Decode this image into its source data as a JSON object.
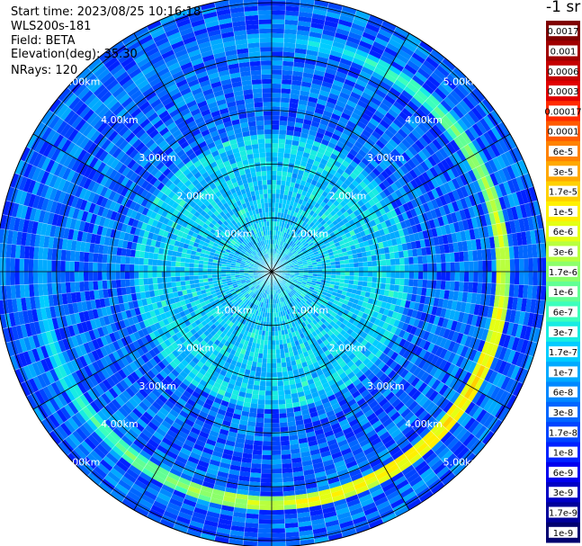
{
  "header": {
    "start_time": "Start time: 2023/08/25 10:16:18",
    "instrument": "WLS200s-181",
    "field": "Field: BETA",
    "elevation": "Elevation(deg): 35.30",
    "nrays": "NRays: 120"
  },
  "colorbar": {
    "title": "-1 sr",
    "entries": [
      {
        "label": "0.0017",
        "color": "#7f0000"
      },
      {
        "label": "0.001",
        "color": "#a00000"
      },
      {
        "label": "0.0006",
        "color": "#c40000"
      },
      {
        "label": "0.0003",
        "color": "#e00000"
      },
      {
        "label": "0.00017",
        "color": "#ff2a00"
      },
      {
        "label": "0.0001",
        "color": "#ff5a00"
      },
      {
        "label": "6e-5",
        "color": "#ff8200"
      },
      {
        "label": "3e-5",
        "color": "#ffa800"
      },
      {
        "label": "1.7e-5",
        "color": "#ffd000"
      },
      {
        "label": "1e-5",
        "color": "#fff000"
      },
      {
        "label": "6e-6",
        "color": "#e4ff14"
      },
      {
        "label": "3e-6",
        "color": "#b8ff3e"
      },
      {
        "label": "1.7e-6",
        "color": "#8cff6a"
      },
      {
        "label": "1e-6",
        "color": "#62ff94"
      },
      {
        "label": "6e-7",
        "color": "#3cffbc"
      },
      {
        "label": "3e-7",
        "color": "#18ece2"
      },
      {
        "label": "1.7e-7",
        "color": "#00ccff"
      },
      {
        "label": "1e-7",
        "color": "#00aaff"
      },
      {
        "label": "6e-8",
        "color": "#0088ff"
      },
      {
        "label": "3e-8",
        "color": "#0066ff"
      },
      {
        "label": "1.7e-8",
        "color": "#0044ff"
      },
      {
        "label": "1e-8",
        "color": "#0022ff"
      },
      {
        "label": "6e-9",
        "color": "#0000ee"
      },
      {
        "label": "3e-9",
        "color": "#0000c4"
      },
      {
        "label": "1.7e-9",
        "color": "#00009a"
      },
      {
        "label": "1e-9",
        "color": "#000070"
      }
    ]
  },
  "chart_data": {
    "type": "heatmap",
    "projection": "polar",
    "field": "BETA",
    "rays": 120,
    "range_rings_km": [
      1,
      2,
      3,
      4,
      5
    ],
    "ring_labels": [
      "1.00km",
      "2.00km",
      "3.00km",
      "4.00km",
      "5.00km"
    ],
    "azimuth_spokes_deg": [
      0,
      30,
      60,
      90,
      120,
      150,
      180,
      210,
      240,
      270,
      300,
      330
    ],
    "max_range_km": 5.1,
    "color_scale": "log",
    "value_range": [
      1e-09,
      0.0017
    ],
    "description_levels": {
      "background": 3e-08,
      "inner_region": 1.7e-07,
      "ring_band_km": 4.3,
      "ring_band_value": 1e-05
    }
  }
}
